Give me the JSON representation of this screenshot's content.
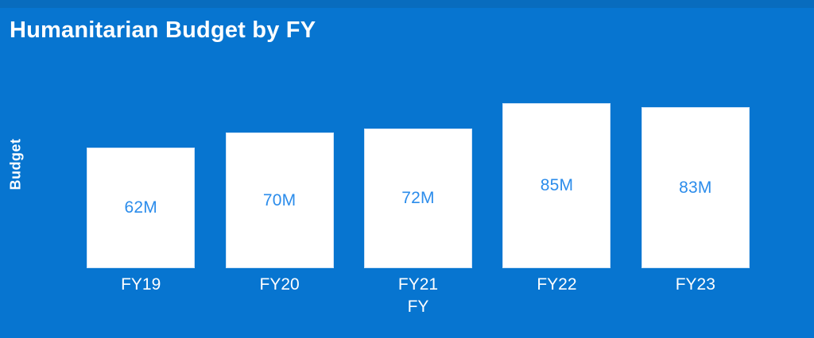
{
  "title": "Humanitarian Budget by FY",
  "colors": {
    "background": "#0775D0",
    "top_strip": "#086CBE",
    "bar_fill": "#FFFFFF",
    "bar_border": "#CFE3F7",
    "value_label": "#2B8CEB",
    "axis_text": "#FFFFFF",
    "title_text": "#FFFFFF"
  },
  "chart_data": {
    "type": "bar",
    "title": "Humanitarian Budget by FY",
    "categories": [
      "FY19",
      "FY20",
      "FY21",
      "FY22",
      "FY23"
    ],
    "values": [
      62,
      70,
      72,
      85,
      83
    ],
    "value_labels": [
      "62M",
      "70M",
      "72M",
      "85M",
      "83M"
    ],
    "xlabel": "FY",
    "ylabel": "Budget",
    "ylim": [
      0,
      97
    ],
    "unit": "M",
    "grid": false,
    "legend": false,
    "bar_color": "#FFFFFF",
    "value_label_position": "center-inside",
    "orientation": "vertical"
  }
}
